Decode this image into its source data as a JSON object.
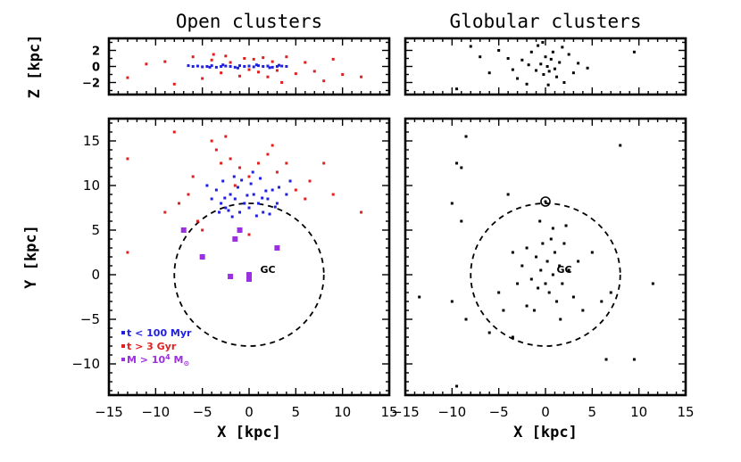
{
  "chart_data": [
    {
      "id": "open-z",
      "type": "scatter",
      "title": "Open clusters",
      "xlabel": "",
      "ylabel": "Z [kpc]",
      "xlim": [
        -15,
        15
      ],
      "ylim": [
        -3.5,
        3.5
      ],
      "yticks": [
        -2,
        0,
        2
      ],
      "series": [
        {
          "name": "t < 100 Myr",
          "color": "#1f1fe0",
          "points": [
            [
              -6.5,
              0.1
            ],
            [
              -6,
              0
            ],
            [
              -5.5,
              0.05
            ],
            [
              -5,
              -0.05
            ],
            [
              -4.5,
              0
            ],
            [
              -4,
              0.1
            ],
            [
              -3.5,
              -0.1
            ],
            [
              -3,
              0
            ],
            [
              -2.5,
              0.05
            ],
            [
              -2,
              0
            ],
            [
              -1.5,
              -0.1
            ],
            [
              -1,
              0.1
            ],
            [
              -0.5,
              0
            ],
            [
              0,
              0.05
            ],
            [
              0.5,
              -0.05
            ],
            [
              1,
              0.1
            ],
            [
              1.5,
              0
            ],
            [
              2,
              0.05
            ],
            [
              2.5,
              -0.1
            ],
            [
              3,
              0
            ],
            [
              3.5,
              0.05
            ],
            [
              4,
              0
            ],
            [
              -2.8,
              0.2
            ],
            [
              -1.2,
              -0.2
            ],
            [
              0.8,
              0.2
            ],
            [
              2.2,
              -0.15
            ],
            [
              -4.2,
              -0.1
            ],
            [
              3.2,
              0.15
            ]
          ]
        },
        {
          "name": "t > 3 Gyr",
          "color": "#e01f1f",
          "points": [
            [
              -9,
              0.6
            ],
            [
              -6,
              1.2
            ],
            [
              -5,
              -1.5
            ],
            [
              -4,
              0.8
            ],
            [
              -3,
              -0.8
            ],
            [
              -2.5,
              1.3
            ],
            [
              -2,
              0.5
            ],
            [
              -1,
              -1.2
            ],
            [
              -0.5,
              1
            ],
            [
              0,
              -0.4
            ],
            [
              0.5,
              0.9
            ],
            [
              1,
              -0.7
            ],
            [
              1.5,
              1.1
            ],
            [
              2,
              -1.3
            ],
            [
              2.5,
              0.6
            ],
            [
              3,
              -0.5
            ],
            [
              4,
              1.2
            ],
            [
              5,
              -0.9
            ],
            [
              6,
              0.5
            ],
            [
              7,
              -0.6
            ],
            [
              8,
              -1.8
            ],
            [
              10,
              -1.0
            ],
            [
              12,
              -1.3
            ],
            [
              -13,
              -1.4
            ],
            [
              -8,
              -2.2
            ],
            [
              -11,
              0.3
            ],
            [
              3.5,
              -2.0
            ],
            [
              -3.8,
              1.5
            ],
            [
              9,
              0.9
            ]
          ]
        }
      ]
    },
    {
      "id": "globular-z",
      "type": "scatter",
      "title": "Globular clusters",
      "xlabel": "",
      "ylabel": "",
      "xlim": [
        -15,
        15
      ],
      "ylim": [
        -3.5,
        3.5
      ],
      "series": [
        {
          "name": "Globular clusters",
          "color": "#000000",
          "points": [
            [
              -8,
              2.5
            ],
            [
              -9.5,
              -2.8
            ],
            [
              -5,
              2
            ],
            [
              -4,
              1
            ],
            [
              -3,
              -1.5
            ],
            [
              -2.5,
              0.8
            ],
            [
              -2,
              -2.2
            ],
            [
              -1.5,
              1.8
            ],
            [
              -1,
              -0.5
            ],
            [
              -0.8,
              2.6
            ],
            [
              -0.5,
              0.3
            ],
            [
              -0.2,
              -1
            ],
            [
              0,
              1.2
            ],
            [
              0.2,
              0
            ],
            [
              0.4,
              -0.6
            ],
            [
              0.6,
              0.9
            ],
            [
              0.8,
              1.8
            ],
            [
              1,
              -0.3
            ],
            [
              1.2,
              -1.3
            ],
            [
              1.5,
              0.5
            ],
            [
              2,
              -2
            ],
            [
              2.5,
              1.5
            ],
            [
              3,
              -0.8
            ],
            [
              3.5,
              0.4
            ],
            [
              -1.8,
              0.2
            ],
            [
              -3.5,
              -0.4
            ],
            [
              4.5,
              -0.2
            ],
            [
              9.5,
              1.8
            ],
            [
              -6,
              -0.8
            ],
            [
              -7,
              1.2
            ],
            [
              0.3,
              -2.3
            ],
            [
              1.8,
              2.4
            ],
            [
              -0.3,
              3.0
            ]
          ]
        }
      ]
    },
    {
      "id": "open-xy",
      "type": "scatter",
      "title": "",
      "xlabel": "X [kpc]",
      "ylabel": "Y [kpc]",
      "xlim": [
        -15,
        15
      ],
      "ylim": [
        -13.5,
        17.5
      ],
      "xticks": [
        -15,
        -10,
        -5,
        0,
        5,
        10,
        15
      ],
      "yticks": [
        -10,
        -5,
        0,
        5,
        10,
        15
      ],
      "series": [
        {
          "name": "t < 100 Myr",
          "color": "#1f1fe0",
          "points": [
            [
              -3,
              8
            ],
            [
              -2.5,
              7.5
            ],
            [
              -2,
              9
            ],
            [
              -1.5,
              8.5
            ],
            [
              -1,
              7
            ],
            [
              -0.5,
              8
            ],
            [
              0,
              7.5
            ],
            [
              0.5,
              9
            ],
            [
              1,
              8
            ],
            [
              1.5,
              7
            ],
            [
              2,
              8.5
            ],
            [
              2.5,
              9.5
            ],
            [
              3,
              8
            ],
            [
              -3.5,
              9.5
            ],
            [
              -2.8,
              10.5
            ],
            [
              -1.8,
              6.5
            ],
            [
              -1.2,
              9.8
            ],
            [
              0.2,
              10.2
            ],
            [
              1.2,
              10.8
            ],
            [
              2.2,
              6.8
            ],
            [
              3.2,
              9.8
            ],
            [
              -4,
              8.5
            ],
            [
              4,
              9
            ],
            [
              -2.2,
              7.2
            ],
            [
              0.8,
              6.6
            ],
            [
              -0.2,
              8.9
            ],
            [
              1.8,
              9.4
            ],
            [
              -4.5,
              10
            ],
            [
              -3.2,
              7
            ],
            [
              2.8,
              7.6
            ],
            [
              -1.6,
              11
            ],
            [
              0.4,
              11.5
            ],
            [
              4.4,
              10.5
            ],
            [
              -0.8,
              10.6
            ],
            [
              1.4,
              8.6
            ],
            [
              -2.6,
              8.6
            ]
          ]
        },
        {
          "name": "t > 3 Gyr",
          "color": "#e01f1f",
          "points": [
            [
              -13,
              13
            ],
            [
              -9,
              7
            ],
            [
              -8,
              16
            ],
            [
              -6,
              11
            ],
            [
              -4,
              15
            ],
            [
              -3.5,
              14
            ],
            [
              -3,
              12.5
            ],
            [
              -2,
              13
            ],
            [
              -1,
              12
            ],
            [
              0,
              11
            ],
            [
              1,
              12.5
            ],
            [
              2,
              13.5
            ],
            [
              3,
              11.5
            ],
            [
              4,
              12.5
            ],
            [
              5,
              9.5
            ],
            [
              6,
              8.5
            ],
            [
              8,
              12.5
            ],
            [
              9,
              9
            ],
            [
              12,
              7
            ],
            [
              -13,
              2.5
            ],
            [
              -5,
              5
            ],
            [
              0,
              4.5
            ],
            [
              -5.5,
              6
            ],
            [
              -7.5,
              8
            ],
            [
              6.5,
              10.5
            ],
            [
              -2.5,
              15.5
            ],
            [
              2.5,
              14.5
            ],
            [
              -1.5,
              10
            ],
            [
              -6.5,
              9
            ]
          ]
        },
        {
          "name": "M > 10^4 M_sun",
          "color": "#9b30e0",
          "points": [
            [
              -2,
              -0.2
            ],
            [
              0,
              0
            ],
            [
              3,
              3
            ],
            [
              -1,
              5
            ],
            [
              -7,
              5
            ],
            [
              -5,
              2
            ],
            [
              -1.5,
              4
            ],
            [
              0,
              -0.5
            ]
          ]
        }
      ],
      "legend": [
        {
          "text": "t < 100 Myr",
          "color": "#1f1fe0"
        },
        {
          "text": "t > 3 Gyr",
          "color": "#e01f1f"
        },
        {
          "text": "M > 10",
          "sup": "4",
          "tail": " M",
          "sub": "⊙",
          "color": "#9b30e0"
        }
      ],
      "legend_position": "bottom-left",
      "annotations": [
        {
          "text": "GC",
          "x": 1,
          "y": 0.6
        }
      ],
      "circle": {
        "x": 0,
        "y": 0,
        "r": 8,
        "style": "dashed"
      }
    },
    {
      "id": "globular-xy",
      "type": "scatter",
      "title": "",
      "xlabel": "X [kpc]",
      "ylabel": "",
      "xlim": [
        -15,
        15
      ],
      "ylim": [
        -13.5,
        17.5
      ],
      "xticks": [
        -15,
        -10,
        -5,
        0,
        5,
        10,
        15
      ],
      "series": [
        {
          "name": "Globular clusters",
          "color": "#000000",
          "points": [
            [
              -8.5,
              15.5
            ],
            [
              -9.5,
              12.5
            ],
            [
              -9,
              12
            ],
            [
              -10,
              8
            ],
            [
              -9,
              6
            ],
            [
              -13.5,
              -2.5
            ],
            [
              -10,
              -3
            ],
            [
              -8.5,
              -5
            ],
            [
              -5,
              -2
            ],
            [
              -4.5,
              -4
            ],
            [
              -4,
              9
            ],
            [
              -3.5,
              2.5
            ],
            [
              -3,
              -1
            ],
            [
              -2.5,
              1
            ],
            [
              -2,
              3
            ],
            [
              -1.5,
              -0.5
            ],
            [
              -1,
              2
            ],
            [
              -0.8,
              -1.5
            ],
            [
              -0.5,
              0.5
            ],
            [
              -0.3,
              3.5
            ],
            [
              0,
              -1
            ],
            [
              0.2,
              1.5
            ],
            [
              0.4,
              -2
            ],
            [
              0.6,
              4
            ],
            [
              0.8,
              0
            ],
            [
              1,
              2.5
            ],
            [
              1.2,
              -3
            ],
            [
              1.5,
              1
            ],
            [
              1.8,
              -1
            ],
            [
              2,
              3.5
            ],
            [
              2.5,
              0.5
            ],
            [
              3,
              -2.5
            ],
            [
              3.5,
              1.5
            ],
            [
              4,
              -4
            ],
            [
              5,
              2.5
            ],
            [
              6,
              -3
            ],
            [
              7,
              -2
            ],
            [
              8,
              14.5
            ],
            [
              11.5,
              -1
            ],
            [
              9.5,
              -9.5
            ],
            [
              6.5,
              -9.5
            ],
            [
              -6,
              -6.5
            ],
            [
              -3.5,
              -7
            ],
            [
              -1.2,
              -4
            ],
            [
              0.8,
              5.2
            ],
            [
              -0.6,
              6
            ],
            [
              2.2,
              5.5
            ],
            [
              -2,
              -3.5
            ],
            [
              1.6,
              -5
            ],
            [
              -9.5,
              -12.5
            ]
          ]
        }
      ],
      "annotations": [
        {
          "text": "GC",
          "x": 1,
          "y": 0.6
        }
      ],
      "sun": {
        "x": 0,
        "y": 8.2
      },
      "circle": {
        "x": 0,
        "y": 0,
        "r": 8,
        "style": "dashed"
      }
    }
  ]
}
